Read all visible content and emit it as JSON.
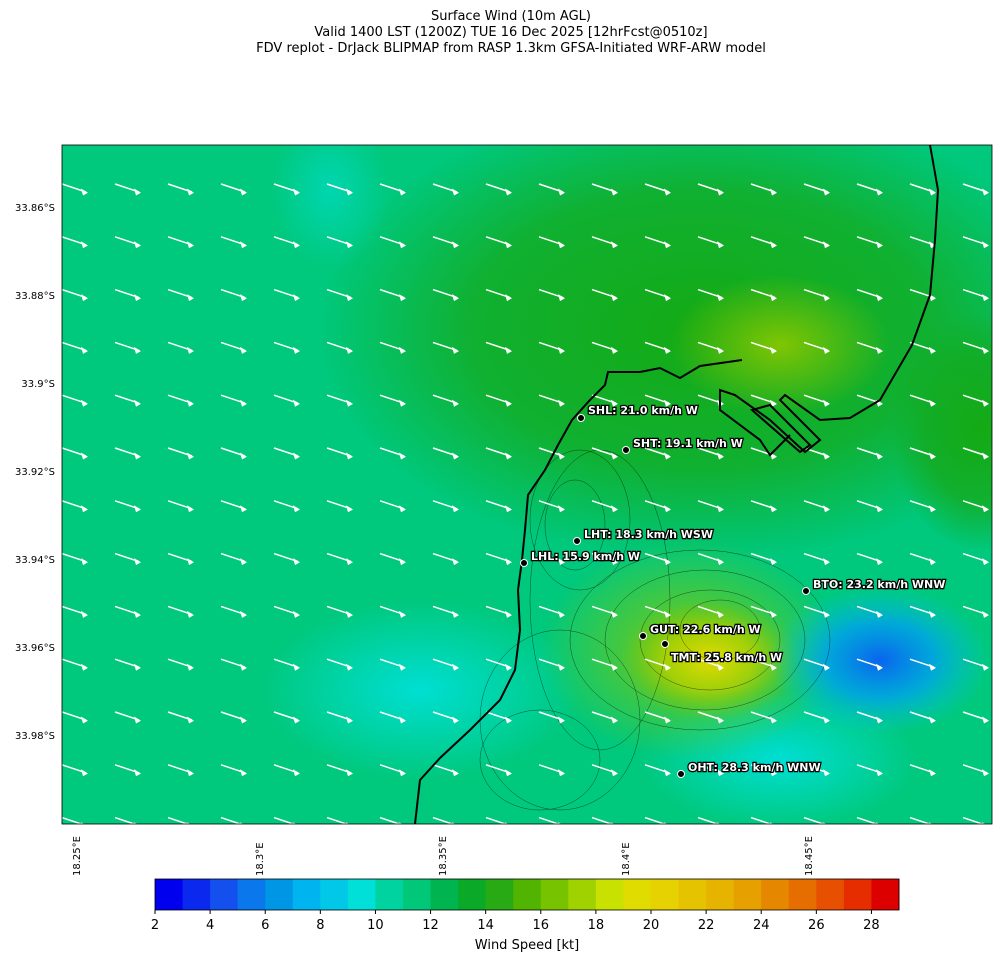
{
  "header": {
    "lines": [
      "Surface Wind (10m AGL)",
      "Valid 1400 LST (1200Z) TUE 16 Dec 2025 [12hrFcst@0510z]",
      "FDV replot - DrJack BLIPMAP from RASP 1.3km GFSA-Initiated WRF-ARW model"
    ]
  },
  "map": {
    "lat_labels": [
      "33.86°S",
      "33.88°S",
      "33.9°S",
      "33.92°S",
      "33.94°S",
      "33.96°S",
      "33.98°S"
    ],
    "lon_labels": [
      "18.25°E",
      "18.3°E",
      "18.35°E",
      "18.4°E",
      "18.45°E"
    ],
    "stations": [
      "SHL: 21.0 km/h W",
      "SHT: 19.1 km/h W",
      "LHT: 18.3 km/h WSW",
      "LHL: 15.9 km/h W",
      "BTO: 23.2 km/h WNW",
      "GUT: 22.6 km/h W",
      "TMT: 25.8 km/h W",
      "OHT: 28.3 km/h WNW"
    ]
  },
  "colorbar": {
    "label": "Wind Speed [kt]",
    "lim": [
      2,
      29
    ],
    "ticks": [
      2,
      4,
      6,
      8,
      10,
      12,
      14,
      16,
      18,
      20,
      22,
      24,
      26,
      28
    ],
    "colors": [
      "#0000ee",
      "#0a28ee",
      "#1450ee",
      "#0a78ec",
      "#0096e6",
      "#00b4f0",
      "#00c8e6",
      "#00e0d8",
      "#00d2a0",
      "#00c878",
      "#00b450",
      "#0aaa28",
      "#28aa14",
      "#50b400",
      "#78c300",
      "#a0d200",
      "#c8e100",
      "#e1dc00",
      "#e6d200",
      "#e6c300",
      "#e6b400",
      "#e6a000",
      "#e68700",
      "#e66e00",
      "#e65000",
      "#e62d00",
      "#dc0000"
    ]
  }
}
